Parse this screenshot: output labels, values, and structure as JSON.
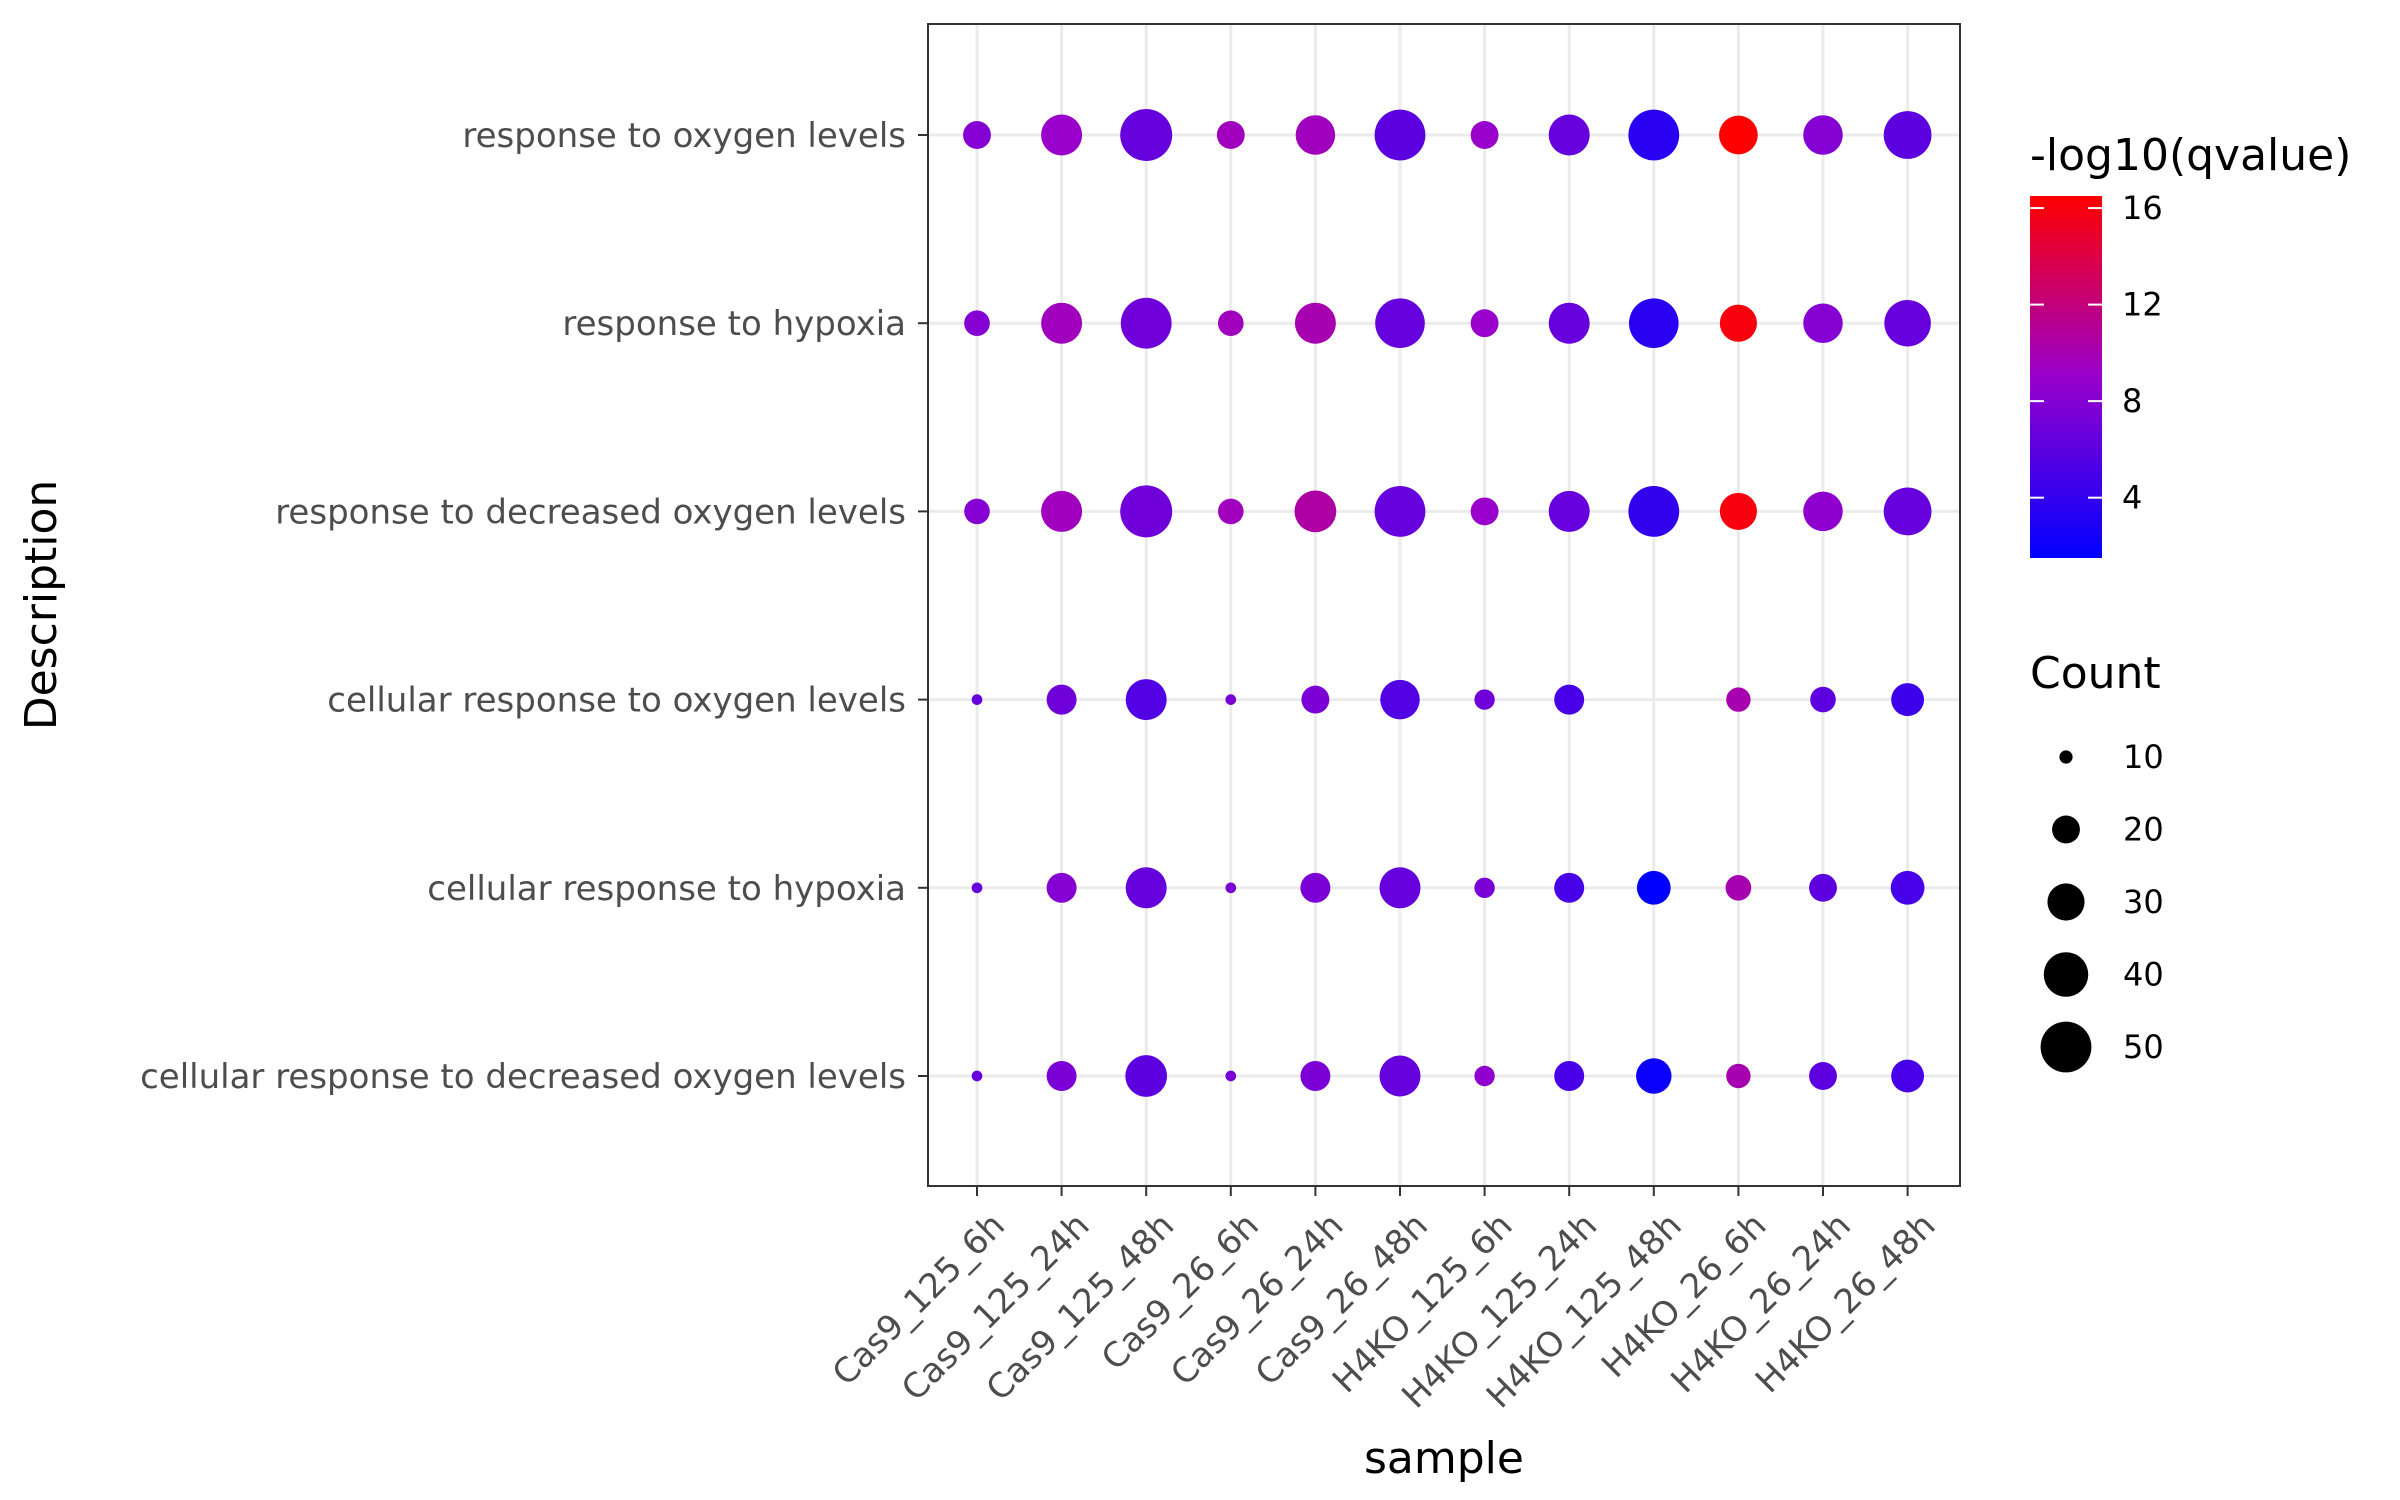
{
  "chart_data": {
    "type": "dotplot",
    "xlabel": "sample",
    "ylabel": "Description",
    "x_categories": [
      "Cas9_125_6h",
      "Cas9_125_24h",
      "Cas9_125_48h",
      "Cas9_26_6h",
      "Cas9_26_24h",
      "Cas9_26_48h",
      "H4KO_125_6h",
      "H4KO_125_24h",
      "H4KO_125_48h",
      "H4KO_26_6h",
      "H4KO_26_24h",
      "H4KO_26_48h"
    ],
    "y_categories": [
      "cellular response to decreased oxygen levels",
      "cellular response to hypoxia",
      "cellular response to oxygen levels",
      "response to decreased oxygen levels",
      "response to hypoxia",
      "response to oxygen levels"
    ],
    "color_legend": {
      "title": "-log10(qvalue)",
      "range": [
        1.5,
        16.5
      ],
      "ticks": [
        4,
        8,
        12,
        16
      ],
      "low_color": "#0000ff",
      "high_color": "#ff0000"
    },
    "size_legend": {
      "title": "Count",
      "values": [
        10,
        20,
        30,
        40,
        50
      ],
      "range": [
        8,
        52
      ]
    },
    "grid": true,
    "legend_position": "right",
    "points": [
      {
        "x": "Cas9_125_6h",
        "y": "response to oxygen levels",
        "count": 20,
        "qvalue_log": 8
      },
      {
        "x": "Cas9_125_24h",
        "y": "response to oxygen levels",
        "count": 35,
        "qvalue_log": 9
      },
      {
        "x": "Cas9_125_48h",
        "y": "response to oxygen levels",
        "count": 52,
        "qvalue_log": 6.5
      },
      {
        "x": "Cas9_26_6h",
        "y": "response to oxygen levels",
        "count": 20,
        "qvalue_log": 9.5
      },
      {
        "x": "Cas9_26_24h",
        "y": "response to oxygen levels",
        "count": 33,
        "qvalue_log": 9.5
      },
      {
        "x": "Cas9_26_48h",
        "y": "response to oxygen levels",
        "count": 50,
        "qvalue_log": 6
      },
      {
        "x": "H4KO_125_6h",
        "y": "response to oxygen levels",
        "count": 20,
        "qvalue_log": 9
      },
      {
        "x": "H4KO_125_24h",
        "y": "response to oxygen levels",
        "count": 35,
        "qvalue_log": 6.5
      },
      {
        "x": "H4KO_125_48h",
        "y": "response to oxygen levels",
        "count": 50,
        "qvalue_log": 3.5
      },
      {
        "x": "H4KO_26_6h",
        "y": "response to oxygen levels",
        "count": 32,
        "qvalue_log": 16.5
      },
      {
        "x": "H4KO_26_24h",
        "y": "response to oxygen levels",
        "count": 33,
        "qvalue_log": 8
      },
      {
        "x": "H4KO_26_48h",
        "y": "response to oxygen levels",
        "count": 45,
        "qvalue_log": 6
      },
      {
        "x": "Cas9_125_6h",
        "y": "response to hypoxia",
        "count": 18,
        "qvalue_log": 8
      },
      {
        "x": "Cas9_125_24h",
        "y": "response to hypoxia",
        "count": 35,
        "qvalue_log": 9.5
      },
      {
        "x": "Cas9_125_48h",
        "y": "response to hypoxia",
        "count": 50,
        "qvalue_log": 7
      },
      {
        "x": "Cas9_26_6h",
        "y": "response to hypoxia",
        "count": 18,
        "qvalue_log": 9.5
      },
      {
        "x": "Cas9_26_24h",
        "y": "response to hypoxia",
        "count": 35,
        "qvalue_log": 10
      },
      {
        "x": "Cas9_26_48h",
        "y": "response to hypoxia",
        "count": 48,
        "qvalue_log": 6.5
      },
      {
        "x": "H4KO_125_6h",
        "y": "response to hypoxia",
        "count": 20,
        "qvalue_log": 9
      },
      {
        "x": "H4KO_125_24h",
        "y": "response to hypoxia",
        "count": 35,
        "qvalue_log": 6.5
      },
      {
        "x": "H4KO_125_48h",
        "y": "response to hypoxia",
        "count": 48,
        "qvalue_log": 3.5
      },
      {
        "x": "H4KO_26_6h",
        "y": "response to hypoxia",
        "count": 30,
        "qvalue_log": 16
      },
      {
        "x": "H4KO_26_24h",
        "y": "response to hypoxia",
        "count": 33,
        "qvalue_log": 8
      },
      {
        "x": "H4KO_26_48h",
        "y": "response to hypoxia",
        "count": 43,
        "qvalue_log": 6.5
      },
      {
        "x": "Cas9_125_6h",
        "y": "response to decreased oxygen levels",
        "count": 18,
        "qvalue_log": 8
      },
      {
        "x": "Cas9_125_24h",
        "y": "response to decreased oxygen levels",
        "count": 35,
        "qvalue_log": 9.5
      },
      {
        "x": "Cas9_125_48h",
        "y": "response to decreased oxygen levels",
        "count": 52,
        "qvalue_log": 7
      },
      {
        "x": "Cas9_26_6h",
        "y": "response to decreased oxygen levels",
        "count": 18,
        "qvalue_log": 9.5
      },
      {
        "x": "Cas9_26_24h",
        "y": "response to decreased oxygen levels",
        "count": 36,
        "qvalue_log": 10.5
      },
      {
        "x": "Cas9_26_48h",
        "y": "response to decreased oxygen levels",
        "count": 50,
        "qvalue_log": 6.5
      },
      {
        "x": "H4KO_125_6h",
        "y": "response to decreased oxygen levels",
        "count": 20,
        "qvalue_log": 9
      },
      {
        "x": "H4KO_125_24h",
        "y": "response to decreased oxygen levels",
        "count": 35,
        "qvalue_log": 6.5
      },
      {
        "x": "H4KO_125_48h",
        "y": "response to decreased oxygen levels",
        "count": 50,
        "qvalue_log": 4
      },
      {
        "x": "H4KO_26_6h",
        "y": "response to decreased oxygen levels",
        "count": 30,
        "qvalue_log": 16
      },
      {
        "x": "H4KO_26_24h",
        "y": "response to decreased oxygen levels",
        "count": 33,
        "qvalue_log": 8.5
      },
      {
        "x": "H4KO_26_48h",
        "y": "response to decreased oxygen levels",
        "count": 45,
        "qvalue_log": 6.5
      },
      {
        "x": "Cas9_125_6h",
        "y": "cellular response to oxygen levels",
        "count": 9,
        "qvalue_log": 6.5
      },
      {
        "x": "Cas9_125_24h",
        "y": "cellular response to oxygen levels",
        "count": 22,
        "qvalue_log": 7
      },
      {
        "x": "Cas9_125_48h",
        "y": "cellular response to oxygen levels",
        "count": 35,
        "qvalue_log": 5.5
      },
      {
        "x": "Cas9_26_6h",
        "y": "cellular response to oxygen levels",
        "count": 9,
        "qvalue_log": 7.5
      },
      {
        "x": "Cas9_26_24h",
        "y": "cellular response to oxygen levels",
        "count": 20,
        "qvalue_log": 7.5
      },
      {
        "x": "Cas9_26_48h",
        "y": "cellular response to oxygen levels",
        "count": 33,
        "qvalue_log": 5.5
      },
      {
        "x": "H4KO_125_6h",
        "y": "cellular response to oxygen levels",
        "count": 14,
        "qvalue_log": 7
      },
      {
        "x": "H4KO_125_24h",
        "y": "cellular response to oxygen levels",
        "count": 22,
        "qvalue_log": 5
      },
      {
        "x": "H4KO_26_6h",
        "y": "cellular response to oxygen levels",
        "count": 17,
        "qvalue_log": 10
      },
      {
        "x": "H4KO_26_24h",
        "y": "cellular response to oxygen levels",
        "count": 18,
        "qvalue_log": 6
      },
      {
        "x": "H4KO_26_48h",
        "y": "cellular response to oxygen levels",
        "count": 25,
        "qvalue_log": 4.5
      },
      {
        "x": "Cas9_125_6h",
        "y": "cellular response to hypoxia",
        "count": 9,
        "qvalue_log": 6.5
      },
      {
        "x": "Cas9_125_24h",
        "y": "cellular response to hypoxia",
        "count": 22,
        "qvalue_log": 8
      },
      {
        "x": "Cas9_125_48h",
        "y": "cellular response to hypoxia",
        "count": 35,
        "qvalue_log": 6.5
      },
      {
        "x": "Cas9_26_6h",
        "y": "cellular response to hypoxia",
        "count": 9,
        "qvalue_log": 7.5
      },
      {
        "x": "Cas9_26_24h",
        "y": "cellular response to hypoxia",
        "count": 22,
        "qvalue_log": 7.5
      },
      {
        "x": "Cas9_26_48h",
        "y": "cellular response to hypoxia",
        "count": 35,
        "qvalue_log": 6.5
      },
      {
        "x": "H4KO_125_6h",
        "y": "cellular response to hypoxia",
        "count": 14,
        "qvalue_log": 7.5
      },
      {
        "x": "H4KO_125_24h",
        "y": "cellular response to hypoxia",
        "count": 22,
        "qvalue_log": 5
      },
      {
        "x": "H4KO_125_48h",
        "y": "cellular response to hypoxia",
        "count": 26,
        "qvalue_log": 1.5
      },
      {
        "x": "H4KO_26_6h",
        "y": "cellular response to hypoxia",
        "count": 18,
        "qvalue_log": 10
      },
      {
        "x": "H4KO_26_24h",
        "y": "cellular response to hypoxia",
        "count": 20,
        "qvalue_log": 6
      },
      {
        "x": "H4KO_26_48h",
        "y": "cellular response to hypoxia",
        "count": 26,
        "qvalue_log": 5
      },
      {
        "x": "Cas9_125_6h",
        "y": "cellular response to decreased oxygen levels",
        "count": 9,
        "qvalue_log": 6.5
      },
      {
        "x": "Cas9_125_24h",
        "y": "cellular response to decreased oxygen levels",
        "count": 22,
        "qvalue_log": 7.5
      },
      {
        "x": "Cas9_125_48h",
        "y": "cellular response to decreased oxygen levels",
        "count": 36,
        "qvalue_log": 6
      },
      {
        "x": "Cas9_26_6h",
        "y": "cellular response to decreased oxygen levels",
        "count": 9,
        "qvalue_log": 7.5
      },
      {
        "x": "Cas9_26_24h",
        "y": "cellular response to decreased oxygen levels",
        "count": 22,
        "qvalue_log": 7.5
      },
      {
        "x": "Cas9_26_48h",
        "y": "cellular response to decreased oxygen levels",
        "count": 35,
        "qvalue_log": 6.5
      },
      {
        "x": "H4KO_125_6h",
        "y": "cellular response to decreased oxygen levels",
        "count": 14,
        "qvalue_log": 8.5
      },
      {
        "x": "H4KO_125_24h",
        "y": "cellular response to decreased oxygen levels",
        "count": 22,
        "qvalue_log": 5
      },
      {
        "x": "H4KO_125_48h",
        "y": "cellular response to decreased oxygen levels",
        "count": 28,
        "qvalue_log": 2
      },
      {
        "x": "H4KO_26_6h",
        "y": "cellular response to decreased oxygen levels",
        "count": 17,
        "qvalue_log": 10
      },
      {
        "x": "H4KO_26_24h",
        "y": "cellular response to decreased oxygen levels",
        "count": 20,
        "qvalue_log": 6
      },
      {
        "x": "H4KO_26_48h",
        "y": "cellular response to decreased oxygen levels",
        "count": 25,
        "qvalue_log": 5
      }
    ]
  }
}
